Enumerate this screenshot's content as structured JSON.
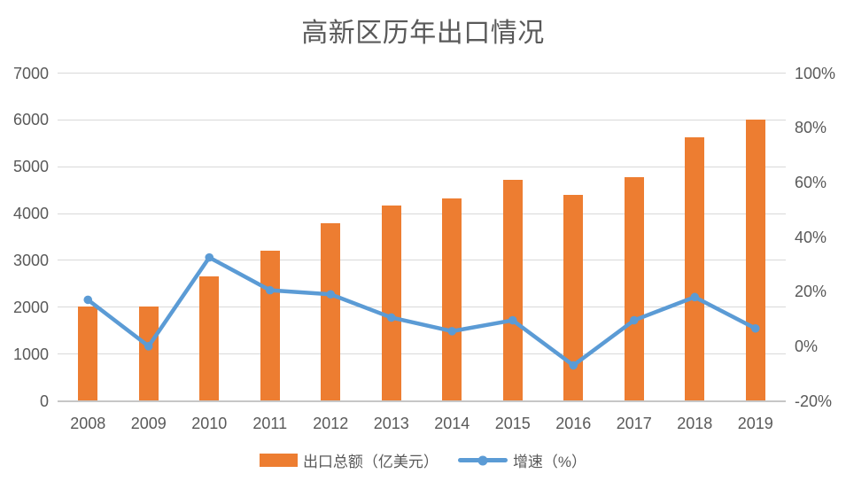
{
  "title": "高新区历年出口情况",
  "colors": {
    "bar": "#ED7D31",
    "line": "#5B9BD5",
    "grid": "#D9D9D9",
    "axis_line": "#C6C6C6",
    "text": "#595959",
    "title_text": "#595959",
    "background": "#FFFFFF"
  },
  "legend": [
    {
      "label": "出口总额（亿美元）",
      "marker": "bar-swatch"
    },
    {
      "label": "增速（%）",
      "marker": "line-swatch"
    }
  ],
  "chart_data": {
    "type": "combo",
    "title": "高新区历年出口情况",
    "categories": [
      "2008",
      "2009",
      "2010",
      "2011",
      "2012",
      "2013",
      "2014",
      "2015",
      "2016",
      "2017",
      "2018",
      "2019"
    ],
    "series": [
      {
        "name": "出口总额（亿美元）",
        "type": "bar",
        "axis": "left",
        "color": "#ED7D31",
        "values": [
          2020,
          2020,
          2660,
          3200,
          3790,
          4170,
          4330,
          4720,
          4400,
          4780,
          5630,
          6000
        ]
      },
      {
        "name": "增速（%）",
        "type": "line",
        "axis": "right",
        "color": "#5B9BD5",
        "values": [
          17,
          0,
          32.5,
          20.5,
          19,
          10.5,
          5.5,
          9.5,
          -7,
          9.5,
          18,
          6.5
        ]
      }
    ],
    "left_axis": {
      "min": 0,
      "max": 7000,
      "step": 1000,
      "ticks": [
        "0",
        "1000",
        "2000",
        "3000",
        "4000",
        "5000",
        "6000",
        "7000"
      ]
    },
    "right_axis": {
      "min": -20,
      "max": 100,
      "step": 20,
      "ticks": [
        "-20%",
        "0%",
        "20%",
        "40%",
        "60%",
        "80%",
        "100%"
      ]
    },
    "grid": "horizontal",
    "legend_position": "bottom"
  }
}
